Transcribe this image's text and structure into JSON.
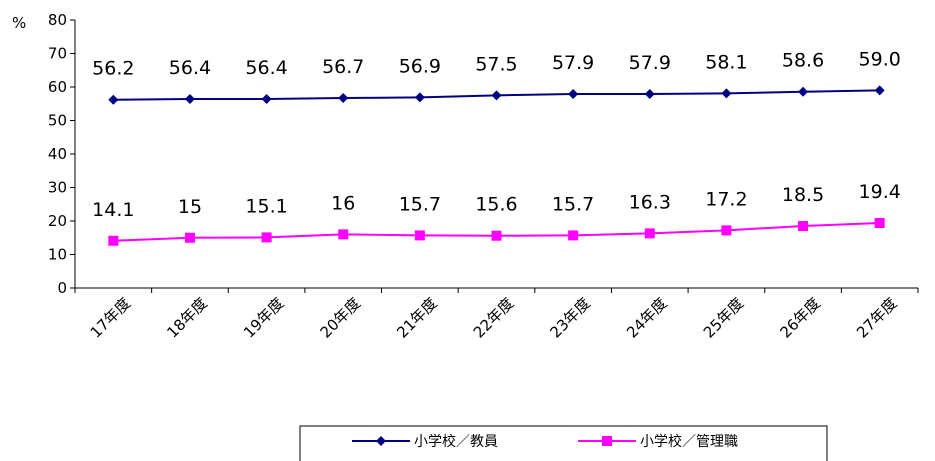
{
  "chart_data": {
    "type": "line",
    "categories": [
      "17年度",
      "18年度",
      "19年度",
      "20年度",
      "21年度",
      "22年度",
      "23年度",
      "24年度",
      "25年度",
      "26年度",
      "27年度"
    ],
    "series": [
      {
        "name": "小学校／教員",
        "values": [
          56.2,
          56.4,
          56.4,
          56.7,
          56.9,
          57.5,
          57.9,
          57.9,
          58.1,
          58.6,
          59.0
        ],
        "labels": [
          "56.2",
          "56.4",
          "56.4",
          "56.7",
          "56.9",
          "57.5",
          "57.9",
          "57.9",
          "58.1",
          "58.6",
          "59.0"
        ],
        "color": "#000080",
        "marker": "diamond"
      },
      {
        "name": "小学校／管理職",
        "values": [
          14.1,
          15,
          15.1,
          16,
          15.7,
          15.6,
          15.7,
          16.3,
          17.2,
          18.5,
          19.4
        ],
        "labels": [
          "14.1",
          "15",
          "15.1",
          "16",
          "15.7",
          "15.6",
          "15.7",
          "16.3",
          "17.2",
          "18.5",
          "19.4"
        ],
        "color": "#ff00ff",
        "marker": "square"
      }
    ],
    "ylabel": "%",
    "ylim": [
      0,
      80
    ],
    "yticks": [
      "0",
      "10",
      "20",
      "30",
      "40",
      "50",
      "60",
      "70",
      "80"
    ],
    "grid": false,
    "legend_position": "bottom"
  }
}
